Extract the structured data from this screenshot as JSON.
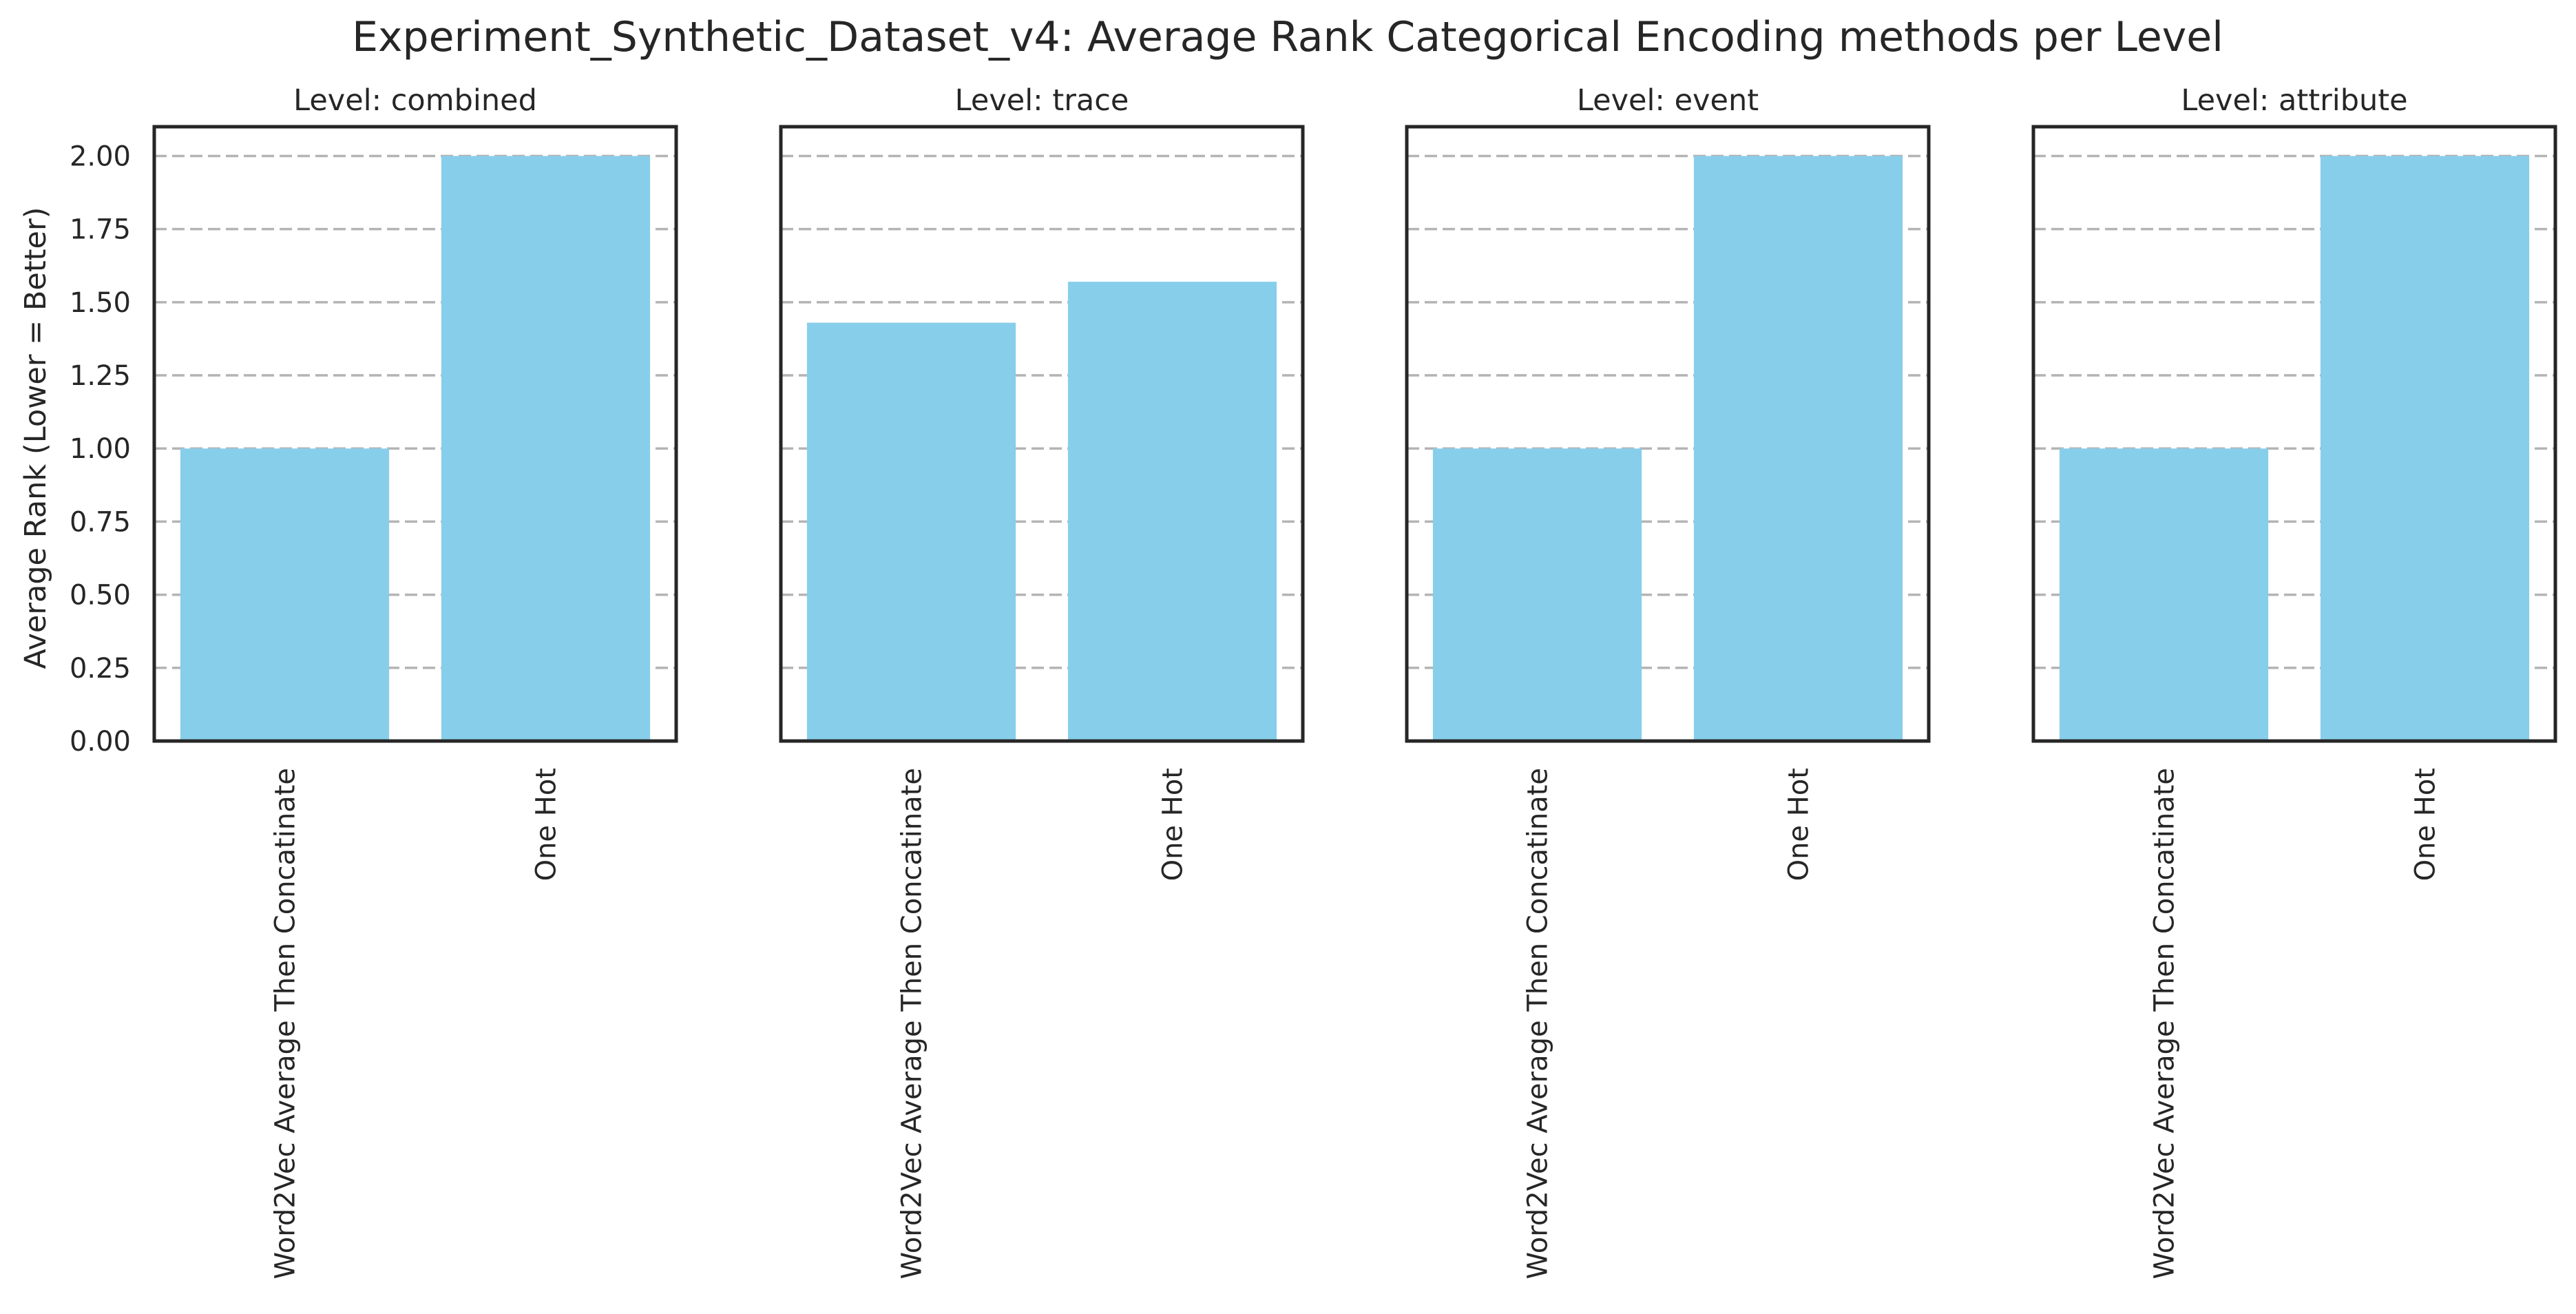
{
  "figure_title": "Experiment_Synthetic_Dataset_v4: Average Rank Categorical Encoding methods per Level",
  "chart_data": [
    {
      "type": "bar",
      "title": "Level: combined",
      "categories": [
        "Word2Vec Average Then Concatinate",
        "One Hot"
      ],
      "values": [
        1.0,
        2.0
      ],
      "xlabel": "",
      "ylabel": "Average Rank (Lower = Better)",
      "ylim": [
        0,
        2.1
      ],
      "yticks": [
        "0.00",
        "0.25",
        "0.50",
        "0.75",
        "1.00",
        "1.25",
        "1.50",
        "1.75",
        "2.00"
      ],
      "grid": "y dashed",
      "color": "#87ceeb"
    },
    {
      "type": "bar",
      "title": "Level: trace",
      "categories": [
        "Word2Vec Average Then Concatinate",
        "One Hot"
      ],
      "values": [
        1.43,
        1.57
      ],
      "xlabel": "",
      "ylabel": "",
      "ylim": [
        0,
        2.1
      ],
      "grid": "y dashed",
      "color": "#87ceeb"
    },
    {
      "type": "bar",
      "title": "Level: event",
      "categories": [
        "Word2Vec Average Then Concatinate",
        "One Hot"
      ],
      "values": [
        1.0,
        2.0
      ],
      "xlabel": "",
      "ylabel": "",
      "ylim": [
        0,
        2.1
      ],
      "grid": "y dashed",
      "color": "#87ceeb"
    },
    {
      "type": "bar",
      "title": "Level: attribute",
      "categories": [
        "Word2Vec Average Then Concatinate",
        "One Hot"
      ],
      "values": [
        1.0,
        2.0
      ],
      "xlabel": "",
      "ylabel": "",
      "ylim": [
        0,
        2.1
      ],
      "grid": "y dashed",
      "color": "#87ceeb"
    }
  ]
}
